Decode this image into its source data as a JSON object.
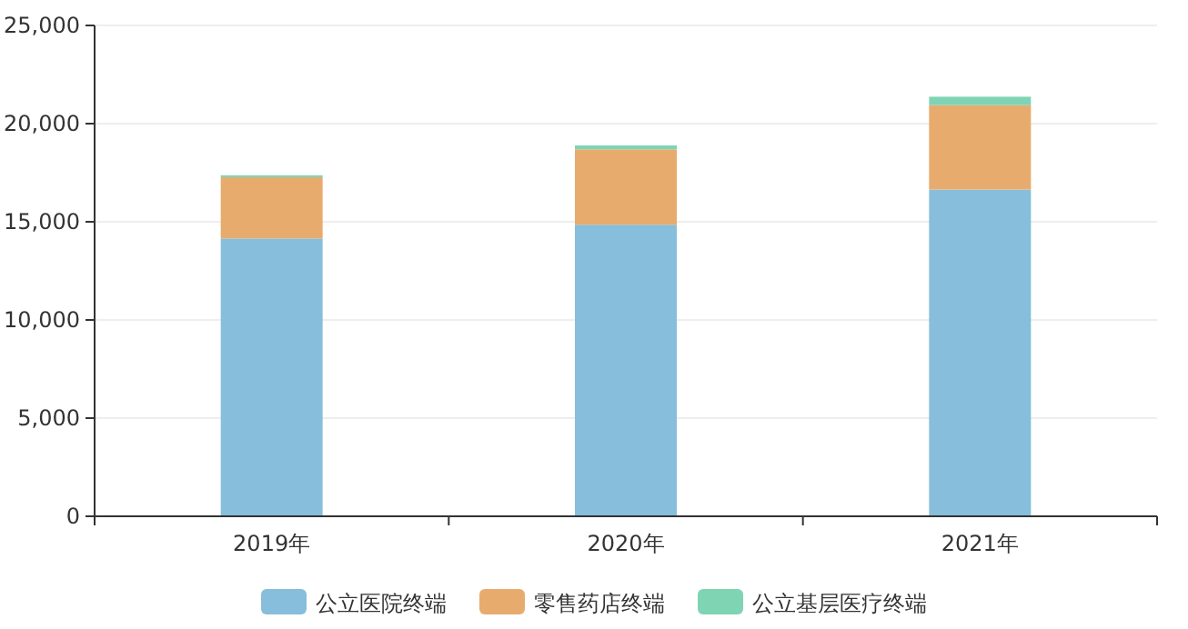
{
  "chart_data": {
    "type": "bar",
    "stacked": true,
    "categories": [
      "2019年",
      "2020年",
      "2021年"
    ],
    "series": [
      {
        "name": "公立医院终端",
        "color": "#86bedb",
        "values": [
          14150,
          14850,
          16640
        ]
      },
      {
        "name": "零售药店终端",
        "color": "#e8ab6e",
        "values": [
          3120,
          3840,
          4300
        ]
      },
      {
        "name": "公立基层医疗终端",
        "color": "#7fd4b4",
        "values": [
          100,
          200,
          430
        ]
      }
    ],
    "ylim": [
      0,
      25000
    ],
    "yticks": [
      0,
      {
        "value": 5000,
        "label": "5,000"
      },
      {
        "value": 10000,
        "label": "10,000"
      },
      {
        "value": 15000,
        "label": "15,000"
      },
      {
        "value": 20000,
        "label": "20,000"
      },
      {
        "value": 25000,
        "label": "25,000"
      }
    ],
    "grid": "y",
    "legend": "bottom"
  }
}
